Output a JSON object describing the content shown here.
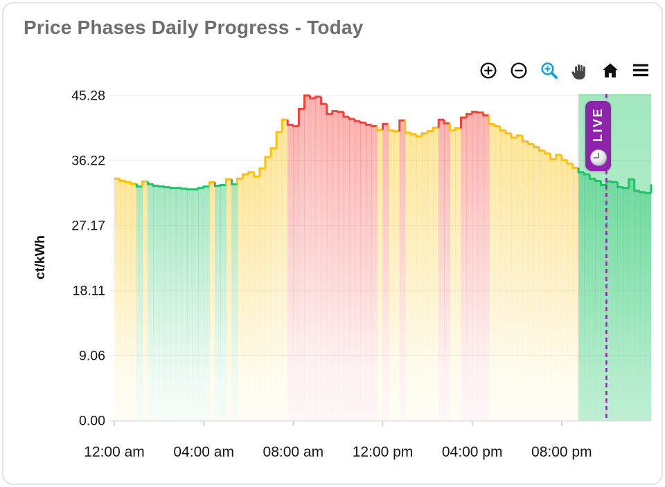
{
  "header": {
    "title": "Price Phases Daily Progress - Today"
  },
  "toolbar": {
    "icon_color": "#111111",
    "active_color": "#17a2d8",
    "buttons": [
      {
        "icon": "zoom-in-icon",
        "action": "zoom-in",
        "active": false
      },
      {
        "icon": "zoom-out-icon",
        "action": "zoom-out",
        "active": false
      },
      {
        "icon": "box-zoom-icon",
        "action": "box-zoom",
        "active": true
      },
      {
        "icon": "pan-icon",
        "action": "pan",
        "active": false
      },
      {
        "icon": "home-icon",
        "action": "reset-view",
        "active": false
      },
      {
        "icon": "menu-icon",
        "action": "menu",
        "active": false
      }
    ]
  },
  "live_badge": {
    "label": "LIVE",
    "color": "#8e24aa",
    "icon": "clock-icon"
  },
  "chart_data": {
    "type": "step-area",
    "title": "Price Phases Daily Progress - Today",
    "xlabel": "",
    "ylabel": "ct/kWh",
    "ylim": [
      0,
      45.28
    ],
    "xlim_hours": [
      0,
      24
    ],
    "step_minutes": 15,
    "grid": "horizontal",
    "y_ticks": [
      {
        "v": 45.28,
        "label": "45.28"
      },
      {
        "v": 36.22,
        "label": "36.22"
      },
      {
        "v": 27.17,
        "label": "27.17"
      },
      {
        "v": 18.11,
        "label": "18.11"
      },
      {
        "v": 9.06,
        "label": "9.06"
      },
      {
        "v": 0,
        "label": "0.00"
      }
    ],
    "x_ticks": [
      {
        "hour": 0,
        "label": "12:00 am"
      },
      {
        "hour": 4,
        "label": "04:00 am"
      },
      {
        "hour": 8,
        "label": "08:00 am"
      },
      {
        "hour": 12,
        "label": "12:00 pm"
      },
      {
        "hour": 16,
        "label": "04:00 pm"
      },
      {
        "hour": 20,
        "label": "08:00 pm"
      }
    ],
    "phase_colors": {
      "g": "#20c167",
      "y": "#ffc107",
      "r": "#f4413a"
    },
    "phase_names": {
      "g": "green-cheap",
      "y": "yellow-medium",
      "r": "red-expensive"
    },
    "start_time": "00:00",
    "values": [
      33.7,
      33.4,
      33.2,
      33.0,
      32.6,
      33.3,
      32.9,
      32.7,
      32.6,
      32.5,
      32.4,
      32.4,
      32.3,
      32.2,
      32.2,
      32.4,
      32.6,
      33.2,
      32.7,
      32.8,
      33.6,
      32.9,
      33.7,
      34.3,
      34.6,
      34.0,
      35.1,
      36.7,
      37.9,
      40.2,
      41.9,
      41.2,
      41.0,
      43.4,
      45.28,
      44.9,
      45.1,
      44.1,
      42.7,
      43.1,
      43.0,
      42.3,
      42.0,
      41.7,
      41.5,
      41.2,
      41.0,
      40.5,
      41.3,
      40.4,
      40.3,
      41.8,
      40.1,
      39.9,
      39.6,
      40.0,
      40.3,
      40.8,
      41.9,
      41.4,
      40.4,
      40.7,
      42.2,
      42.7,
      43.0,
      42.9,
      42.5,
      41.3,
      41.0,
      40.4,
      40.0,
      39.4,
      39.7,
      38.9,
      38.5,
      38.1,
      37.6,
      37.2,
      36.4,
      37.0,
      36.3,
      35.8,
      35.2,
      34.6,
      34.3,
      33.7,
      33.4,
      32.8,
      33.3,
      33.2,
      32.5,
      32.4,
      33.6,
      32.0,
      31.8,
      31.7
    ],
    "phases": [
      "y",
      "y",
      "y",
      "y",
      "g",
      "y",
      "g",
      "g",
      "g",
      "g",
      "g",
      "g",
      "g",
      "g",
      "g",
      "g",
      "g",
      "y",
      "g",
      "g",
      "y",
      "g",
      "y",
      "y",
      "y",
      "y",
      "y",
      "y",
      "y",
      "y",
      "y",
      "r",
      "r",
      "r",
      "r",
      "r",
      "r",
      "r",
      "r",
      "r",
      "r",
      "r",
      "r",
      "r",
      "r",
      "r",
      "r",
      "y",
      "r",
      "y",
      "y",
      "r",
      "y",
      "y",
      "y",
      "y",
      "y",
      "y",
      "r",
      "r",
      "y",
      "y",
      "r",
      "r",
      "r",
      "r",
      "r",
      "y",
      "y",
      "y",
      "y",
      "y",
      "y",
      "y",
      "y",
      "y",
      "y",
      "y",
      "y",
      "y",
      "y",
      "y",
      "y",
      "g",
      "g",
      "g",
      "g",
      "g",
      "g",
      "g",
      "g",
      "g",
      "g",
      "g",
      "g",
      "g"
    ],
    "end_value": 32.9,
    "live_line_hour": 22,
    "live_line_color": "#8e24aa",
    "live_region": {
      "start_hour": 20.75,
      "end_hour": 24,
      "color": "#2ecc71"
    }
  }
}
